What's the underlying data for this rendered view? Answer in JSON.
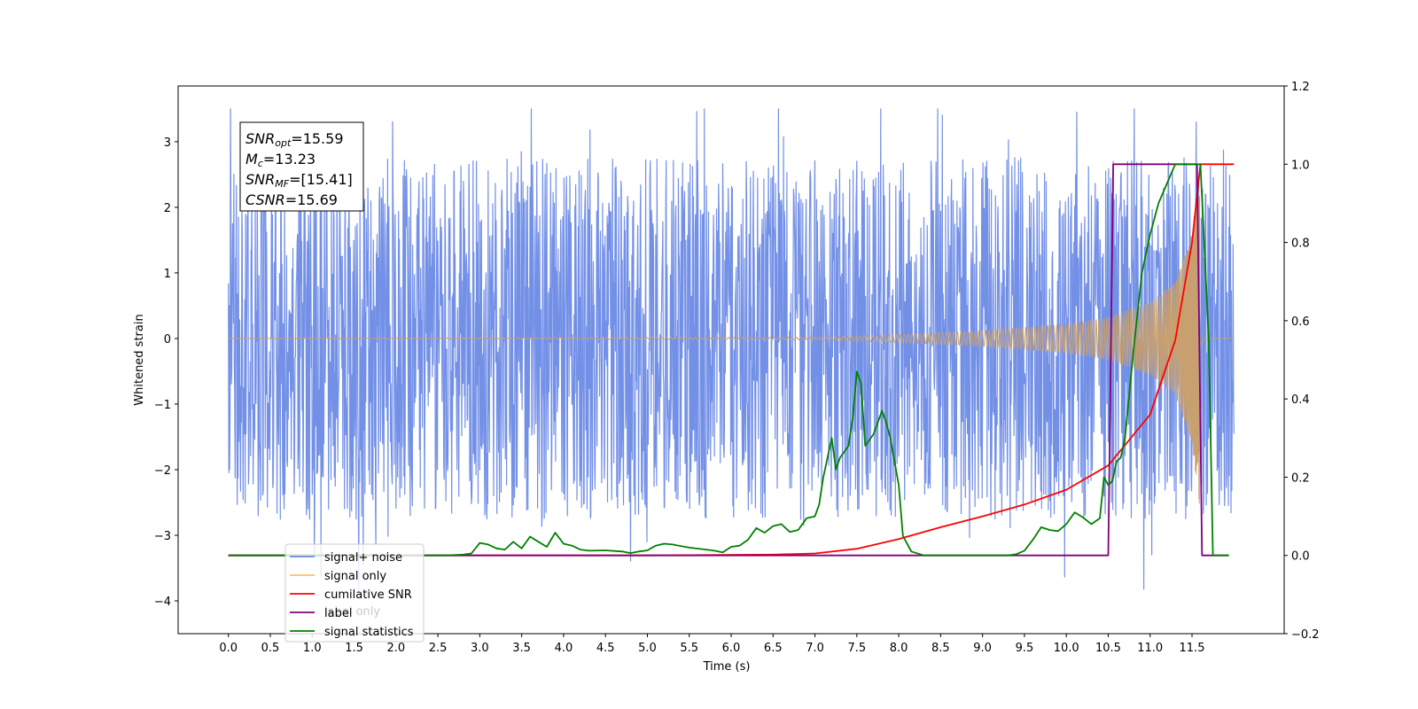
{
  "chart_data": {
    "type": "line",
    "title": "",
    "xlabel": "Time (s)",
    "ylabel": "Whitened strain",
    "y2label": "",
    "xlim": [
      -0.6,
      12.6
    ],
    "ylim": [
      -4.5,
      3.85
    ],
    "y2lim": [
      -0.2,
      1.2
    ],
    "x_ticks": [
      "0.0",
      "0.5",
      "1.0",
      "1.5",
      "2.0",
      "2.5",
      "3.0",
      "3.5",
      "4.0",
      "4.5",
      "5.0",
      "5.5",
      "6.0",
      "6.5",
      "7.0",
      "7.5",
      "8.0",
      "8.5",
      "9.0",
      "9.5",
      "10.0",
      "10.5",
      "11.0",
      "11.5"
    ],
    "y_ticks": [
      "3",
      "2",
      "1",
      "0",
      "−1",
      "−2",
      "−3",
      "−4"
    ],
    "y2_ticks": [
      "1.2",
      "1.0",
      "0.8",
      "0.6",
      "0.4",
      "0.2",
      "0.0",
      "−0.2"
    ],
    "grid": false,
    "legend_position": "lower-left",
    "annotation": {
      "lines": [
        {
          "base": "SNR",
          "sub": "opt",
          "rest": "=15.59"
        },
        {
          "base": "M",
          "sub": "c",
          "rest": "=13.23"
        },
        {
          "base": "SNR",
          "sub": "MF",
          "rest": "=[15.41]"
        },
        {
          "base": "CSNR",
          "sub": "",
          "rest": "=15.69"
        }
      ]
    },
    "legend": [
      {
        "label": "signal+ noise",
        "color": "#6b8ae6"
      },
      {
        "label": "signal only",
        "color": "#ffbf69"
      },
      {
        "label": "cumilative SNR",
        "color": "#ff0000"
      },
      {
        "label": "label",
        "color": "#800080"
      },
      {
        "label": "signal statistics",
        "color": "#008000"
      }
    ],
    "legend_overlap_text": "label only",
    "series": [
      {
        "name": "signal+ noise",
        "axis": "left",
        "color": "#6b8ae6",
        "kind": "noise",
        "x_range": [
          0.0,
          12.0
        ],
        "envelope": [
          -2.4,
          2.4
        ],
        "extremes": [
          -4.1,
          3.5
        ]
      },
      {
        "name": "signal only",
        "axis": "left",
        "color": "#c8a070",
        "kind": "chirp",
        "x_range": [
          0.0,
          12.0
        ],
        "peak_time": 11.6,
        "amplitude": [
          [
            0.0,
            0.0
          ],
          [
            7.0,
            0.02
          ],
          [
            8.0,
            0.06
          ],
          [
            9.0,
            0.12
          ],
          [
            10.0,
            0.22
          ],
          [
            10.5,
            0.32
          ],
          [
            11.0,
            0.55
          ],
          [
            11.3,
            0.85
          ],
          [
            11.5,
            1.6
          ],
          [
            11.6,
            2.7
          ],
          [
            11.65,
            0.0
          ],
          [
            12.0,
            0.0
          ]
        ]
      },
      {
        "name": "cumilative SNR",
        "axis": "right",
        "color": "#ff0000",
        "points": [
          [
            0.0,
            0.0
          ],
          [
            5.0,
            0.0
          ],
          [
            6.5,
            0.002
          ],
          [
            7.0,
            0.005
          ],
          [
            7.5,
            0.017
          ],
          [
            8.0,
            0.042
          ],
          [
            8.5,
            0.072
          ],
          [
            9.0,
            0.1
          ],
          [
            9.5,
            0.13
          ],
          [
            10.0,
            0.168
          ],
          [
            10.5,
            0.23
          ],
          [
            11.0,
            0.36
          ],
          [
            11.3,
            0.55
          ],
          [
            11.5,
            0.8
          ],
          [
            11.6,
            1.0
          ],
          [
            11.7,
            1.0
          ],
          [
            12.0,
            1.0
          ]
        ]
      },
      {
        "name": "label",
        "axis": "right",
        "color": "#800080",
        "points": [
          [
            0.0,
            0.0
          ],
          [
            10.5,
            0.0
          ],
          [
            10.56,
            1.0
          ],
          [
            11.56,
            1.0
          ],
          [
            11.62,
            0.0
          ],
          [
            11.94,
            0.0
          ]
        ]
      },
      {
        "name": "signal statistics",
        "axis": "right",
        "color": "#008000",
        "points": [
          [
            0.0,
            0.0
          ],
          [
            2.6,
            0.0
          ],
          [
            2.8,
            0.002
          ],
          [
            2.9,
            0.005
          ],
          [
            3.0,
            0.032
          ],
          [
            3.1,
            0.028
          ],
          [
            3.2,
            0.018
          ],
          [
            3.3,
            0.015
          ],
          [
            3.4,
            0.035
          ],
          [
            3.5,
            0.018
          ],
          [
            3.6,
            0.048
          ],
          [
            3.7,
            0.035
          ],
          [
            3.8,
            0.022
          ],
          [
            3.9,
            0.058
          ],
          [
            4.0,
            0.03
          ],
          [
            4.1,
            0.025
          ],
          [
            4.2,
            0.015
          ],
          [
            4.3,
            0.012
          ],
          [
            4.5,
            0.013
          ],
          [
            4.7,
            0.01
          ],
          [
            4.8,
            0.006
          ],
          [
            4.9,
            0.01
          ],
          [
            5.0,
            0.013
          ],
          [
            5.1,
            0.025
          ],
          [
            5.2,
            0.03
          ],
          [
            5.3,
            0.028
          ],
          [
            5.5,
            0.02
          ],
          [
            5.7,
            0.015
          ],
          [
            5.8,
            0.012
          ],
          [
            5.9,
            0.008
          ],
          [
            6.0,
            0.022
          ],
          [
            6.1,
            0.025
          ],
          [
            6.2,
            0.04
          ],
          [
            6.3,
            0.07
          ],
          [
            6.4,
            0.058
          ],
          [
            6.5,
            0.075
          ],
          [
            6.6,
            0.08
          ],
          [
            6.7,
            0.06
          ],
          [
            6.8,
            0.065
          ],
          [
            6.9,
            0.095
          ],
          [
            7.0,
            0.1
          ],
          [
            7.05,
            0.13
          ],
          [
            7.1,
            0.2
          ],
          [
            7.2,
            0.3
          ],
          [
            7.25,
            0.22
          ],
          [
            7.3,
            0.25
          ],
          [
            7.4,
            0.28
          ],
          [
            7.45,
            0.35
          ],
          [
            7.5,
            0.47
          ],
          [
            7.55,
            0.44
          ],
          [
            7.6,
            0.28
          ],
          [
            7.7,
            0.31
          ],
          [
            7.8,
            0.37
          ],
          [
            7.85,
            0.34
          ],
          [
            7.9,
            0.3
          ],
          [
            8.0,
            0.18
          ],
          [
            8.05,
            0.05
          ],
          [
            8.15,
            0.01
          ],
          [
            8.3,
            0.0
          ],
          [
            9.3,
            0.0
          ],
          [
            9.4,
            0.003
          ],
          [
            9.5,
            0.012
          ],
          [
            9.6,
            0.04
          ],
          [
            9.7,
            0.072
          ],
          [
            9.8,
            0.065
          ],
          [
            9.9,
            0.062
          ],
          [
            10.0,
            0.08
          ],
          [
            10.1,
            0.11
          ],
          [
            10.2,
            0.097
          ],
          [
            10.3,
            0.08
          ],
          [
            10.4,
            0.095
          ],
          [
            10.45,
            0.2
          ],
          [
            10.5,
            0.18
          ],
          [
            10.55,
            0.19
          ],
          [
            10.6,
            0.24
          ],
          [
            10.65,
            0.25
          ],
          [
            10.7,
            0.3
          ],
          [
            10.8,
            0.52
          ],
          [
            10.9,
            0.72
          ],
          [
            11.0,
            0.82
          ],
          [
            11.1,
            0.9
          ],
          [
            11.2,
            0.95
          ],
          [
            11.3,
            1.0
          ],
          [
            11.6,
            1.0
          ],
          [
            11.7,
            0.55
          ],
          [
            11.75,
            0.0
          ],
          [
            11.94,
            0.0
          ]
        ]
      }
    ]
  }
}
